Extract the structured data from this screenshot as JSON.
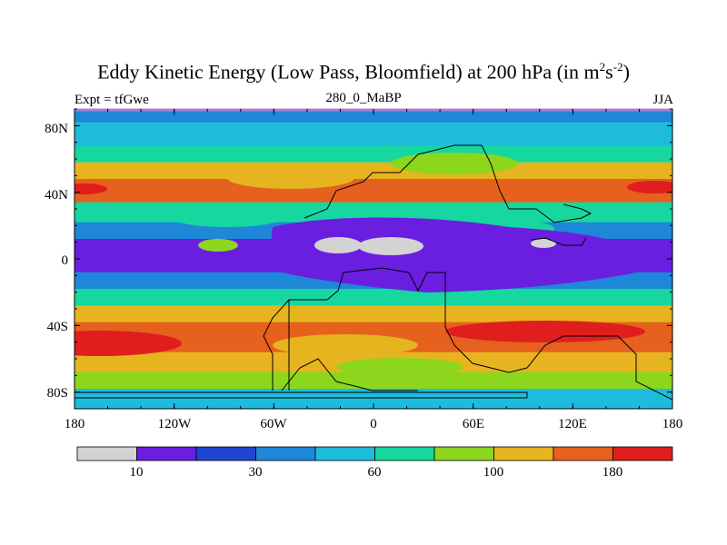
{
  "figure": {
    "title_main": "Eddy Kinetic Energy (Low Pass, Bloomfield) at 200 hPa (in m",
    "title_sup1": "2",
    "title_mid": "s",
    "title_sup2": "-2",
    "title_end": ")",
    "left_string": "Expt = tfGwe",
    "center_string": "280_0_MaBP",
    "right_string": "JJA"
  },
  "axes": {
    "y_ticks": [
      "80N",
      "40N",
      "0",
      "40S",
      "80S"
    ],
    "x_ticks": [
      "180",
      "120W",
      "60W",
      "0",
      "60E",
      "120E",
      "180"
    ]
  },
  "colorbar": {
    "colors": [
      "#d3d3d3",
      "#6a1ee0",
      "#1e44d2",
      "#1e87d8",
      "#1ebcdc",
      "#16d7a0",
      "#8cd61e",
      "#e6b41e",
      "#e6601e",
      "#e01e1e"
    ],
    "labels": [
      "10",
      "30",
      "60",
      "100",
      "180"
    ]
  },
  "chart_data": {
    "type": "heatmap",
    "title": "Eddy Kinetic Energy (Low Pass, Bloomfield) at 200 hPa (in m2s-2)",
    "xlabel": "",
    "ylabel": "",
    "xlim": [
      -180,
      180
    ],
    "ylim": [
      -90,
      90
    ],
    "x_ticks": [
      "180",
      "120W",
      "60W",
      "0",
      "60E",
      "120E",
      "180"
    ],
    "y_ticks": [
      "80N",
      "40N",
      "0",
      "40S",
      "80S"
    ],
    "contour_levels": [
      10,
      30,
      60,
      100,
      180
    ],
    "zonal_bands": [
      {
        "lat_range": [
          82,
          90
        ],
        "level_index": 3
      },
      {
        "lat_range": [
          68,
          82
        ],
        "level_index": 4
      },
      {
        "lat_range": [
          58,
          68
        ],
        "level_index": 5
      },
      {
        "lat_range": [
          48,
          58
        ],
        "level_index": 7
      },
      {
        "lat_range": [
          34,
          48
        ],
        "level_index": 8
      },
      {
        "lat_range": [
          22,
          34
        ],
        "level_index": 5
      },
      {
        "lat_range": [
          12,
          22
        ],
        "level_index": 3
      },
      {
        "lat_range": [
          -8,
          12
        ],
        "level_index": 1
      },
      {
        "lat_range": [
          -18,
          -8
        ],
        "level_index": 3
      },
      {
        "lat_range": [
          -28,
          -18
        ],
        "level_index": 5
      },
      {
        "lat_range": [
          -38,
          -28
        ],
        "level_index": 7
      },
      {
        "lat_range": [
          -56,
          -38
        ],
        "level_index": 8
      },
      {
        "lat_range": [
          -68,
          -56
        ],
        "level_index": 7
      },
      {
        "lat_range": [
          -78,
          -68
        ],
        "level_index": 6
      },
      {
        "lat_range": [
          -90,
          -78
        ],
        "level_index": 4
      }
    ]
  }
}
